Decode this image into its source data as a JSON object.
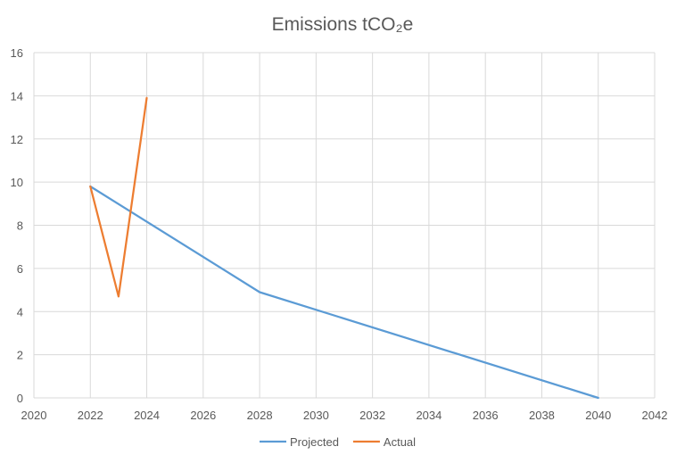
{
  "chart_data": {
    "type": "line",
    "title": "Emissions tCO₂e",
    "xlabel": "",
    "ylabel": "",
    "xlim": [
      2020,
      2042
    ],
    "ylim": [
      0,
      16
    ],
    "x_ticks": [
      2020,
      2022,
      2024,
      2026,
      2028,
      2030,
      2032,
      2034,
      2036,
      2038,
      2040,
      2042
    ],
    "y_ticks": [
      0,
      2,
      4,
      6,
      8,
      10,
      12,
      14,
      16
    ],
    "grid": true,
    "legend_position": "bottom",
    "series": [
      {
        "name": "Projected",
        "color": "#5b9bd5",
        "points": [
          [
            2022,
            9.8
          ],
          [
            2028,
            4.9
          ],
          [
            2040,
            0
          ]
        ]
      },
      {
        "name": "Actual",
        "color": "#ed7d31",
        "points": [
          [
            2022,
            9.8
          ],
          [
            2023,
            4.7
          ],
          [
            2024,
            13.9
          ]
        ]
      }
    ]
  }
}
